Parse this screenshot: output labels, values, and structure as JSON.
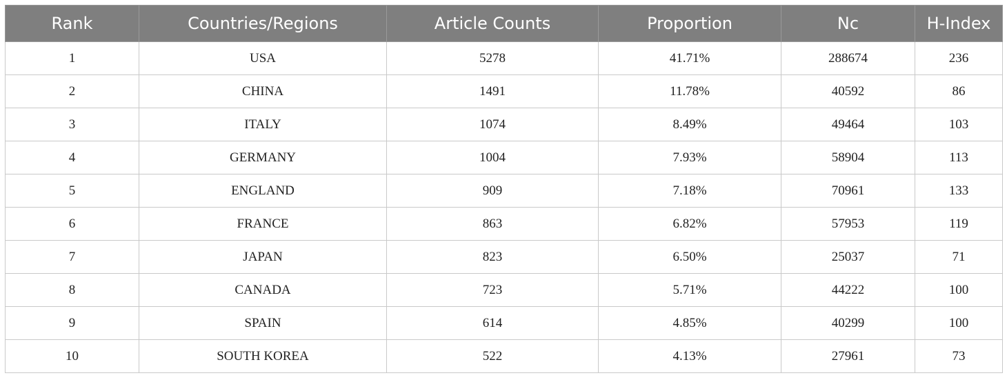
{
  "table": {
    "headers": [
      "Rank",
      "Countries/Regions",
      "Article Counts",
      "Proportion",
      "Nc",
      "H-Index"
    ],
    "rows": [
      [
        "1",
        "USA",
        "5278",
        "41.71%",
        "288674",
        "236"
      ],
      [
        "2",
        "CHINA",
        "1491",
        "11.78%",
        "40592",
        "86"
      ],
      [
        "3",
        "ITALY",
        "1074",
        "8.49%",
        "49464",
        "103"
      ],
      [
        "4",
        "GERMANY",
        "1004",
        "7.93%",
        "58904",
        "113"
      ],
      [
        "5",
        "ENGLAND",
        "909",
        "7.18%",
        "70961",
        "133"
      ],
      [
        "6",
        "FRANCE",
        "863",
        "6.82%",
        "57953",
        "119"
      ],
      [
        "7",
        "JAPAN",
        "823",
        "6.50%",
        "25037",
        "71"
      ],
      [
        "8",
        "CANADA",
        "723",
        "5.71%",
        "44222",
        "100"
      ],
      [
        "9",
        "SPAIN",
        "614",
        "4.85%",
        "40299",
        "100"
      ],
      [
        "10",
        "SOUTH KOREA",
        "522",
        "4.13%",
        "27961",
        "73"
      ]
    ]
  },
  "colors": {
    "header_bg": "#7f7f7f",
    "header_text": "#ffffff",
    "border": "#c9c9c9"
  }
}
